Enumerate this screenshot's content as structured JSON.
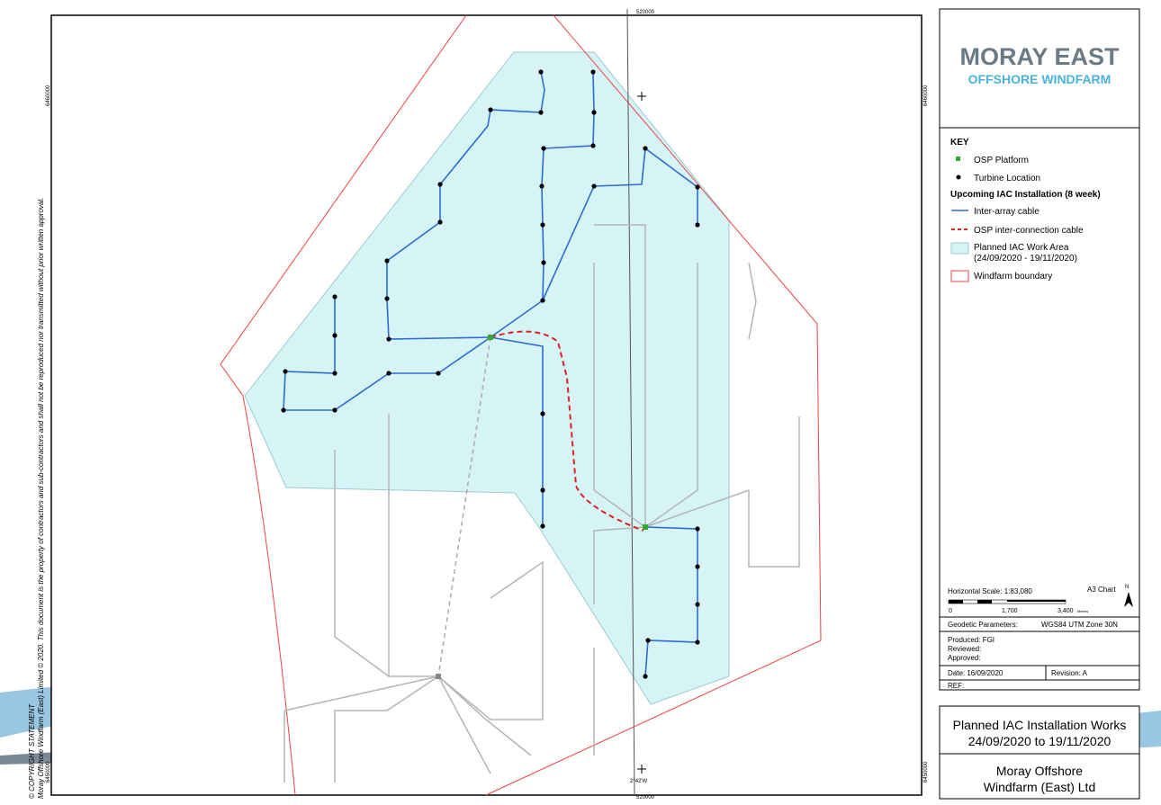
{
  "map": {
    "grid_labels": {
      "easting_top": "520000",
      "easting_bottom": "520000",
      "northing_left_top": "6460000",
      "northing_right_top": "6460000",
      "northing_left_bottom": "6450000",
      "northing_right_bottom": "6450000",
      "longitude": "2°42'W"
    },
    "copyright": {
      "heading": "© COPYRIGHT STATEMENT",
      "text": "Moray Offshore Windfarm (East) Limited © 2020. This document is the property of contractors and sub-contractors and shall not be reproduced nor transmitted without prior written approval."
    }
  },
  "logo": {
    "name": "MORAY EAST",
    "subtitle": "OFFSHORE WINDFARM"
  },
  "key": {
    "title": "KEY",
    "items": [
      "OSP Platform",
      "Turbine Location"
    ],
    "section": "Upcoming IAC Installation (8 week)",
    "section_items": [
      "Inter-array cable",
      "OSP inter-connection cable",
      "Planned IAC Work Area",
      "(24/09/2020 - 19/11/2020)",
      "Windfarm boundary"
    ]
  },
  "scale": {
    "label": "Horizontal Scale:  1:83,080",
    "chart": "A3 Chart",
    "north": "N",
    "ticks": [
      "0",
      "1,700",
      "3,400"
    ],
    "unit": "Metres"
  },
  "info": {
    "geodetic_label": "Geodetic Parameters:",
    "geodetic_value": "WGS84 UTM Zone 30N",
    "produced": "Produced: FGI",
    "reviewed": "Reviewed:",
    "approved": "Approved:",
    "date": "Date: 16/09/2020",
    "revision": "Revision: A",
    "ref": "REF:"
  },
  "title_block": {
    "title_line1": "Planned IAC Installation Works",
    "title_line2": "24/09/2020 to 19/11/2020",
    "company_line1": "Moray Offshore",
    "company_line2": "Windfarm (East) Ltd"
  }
}
